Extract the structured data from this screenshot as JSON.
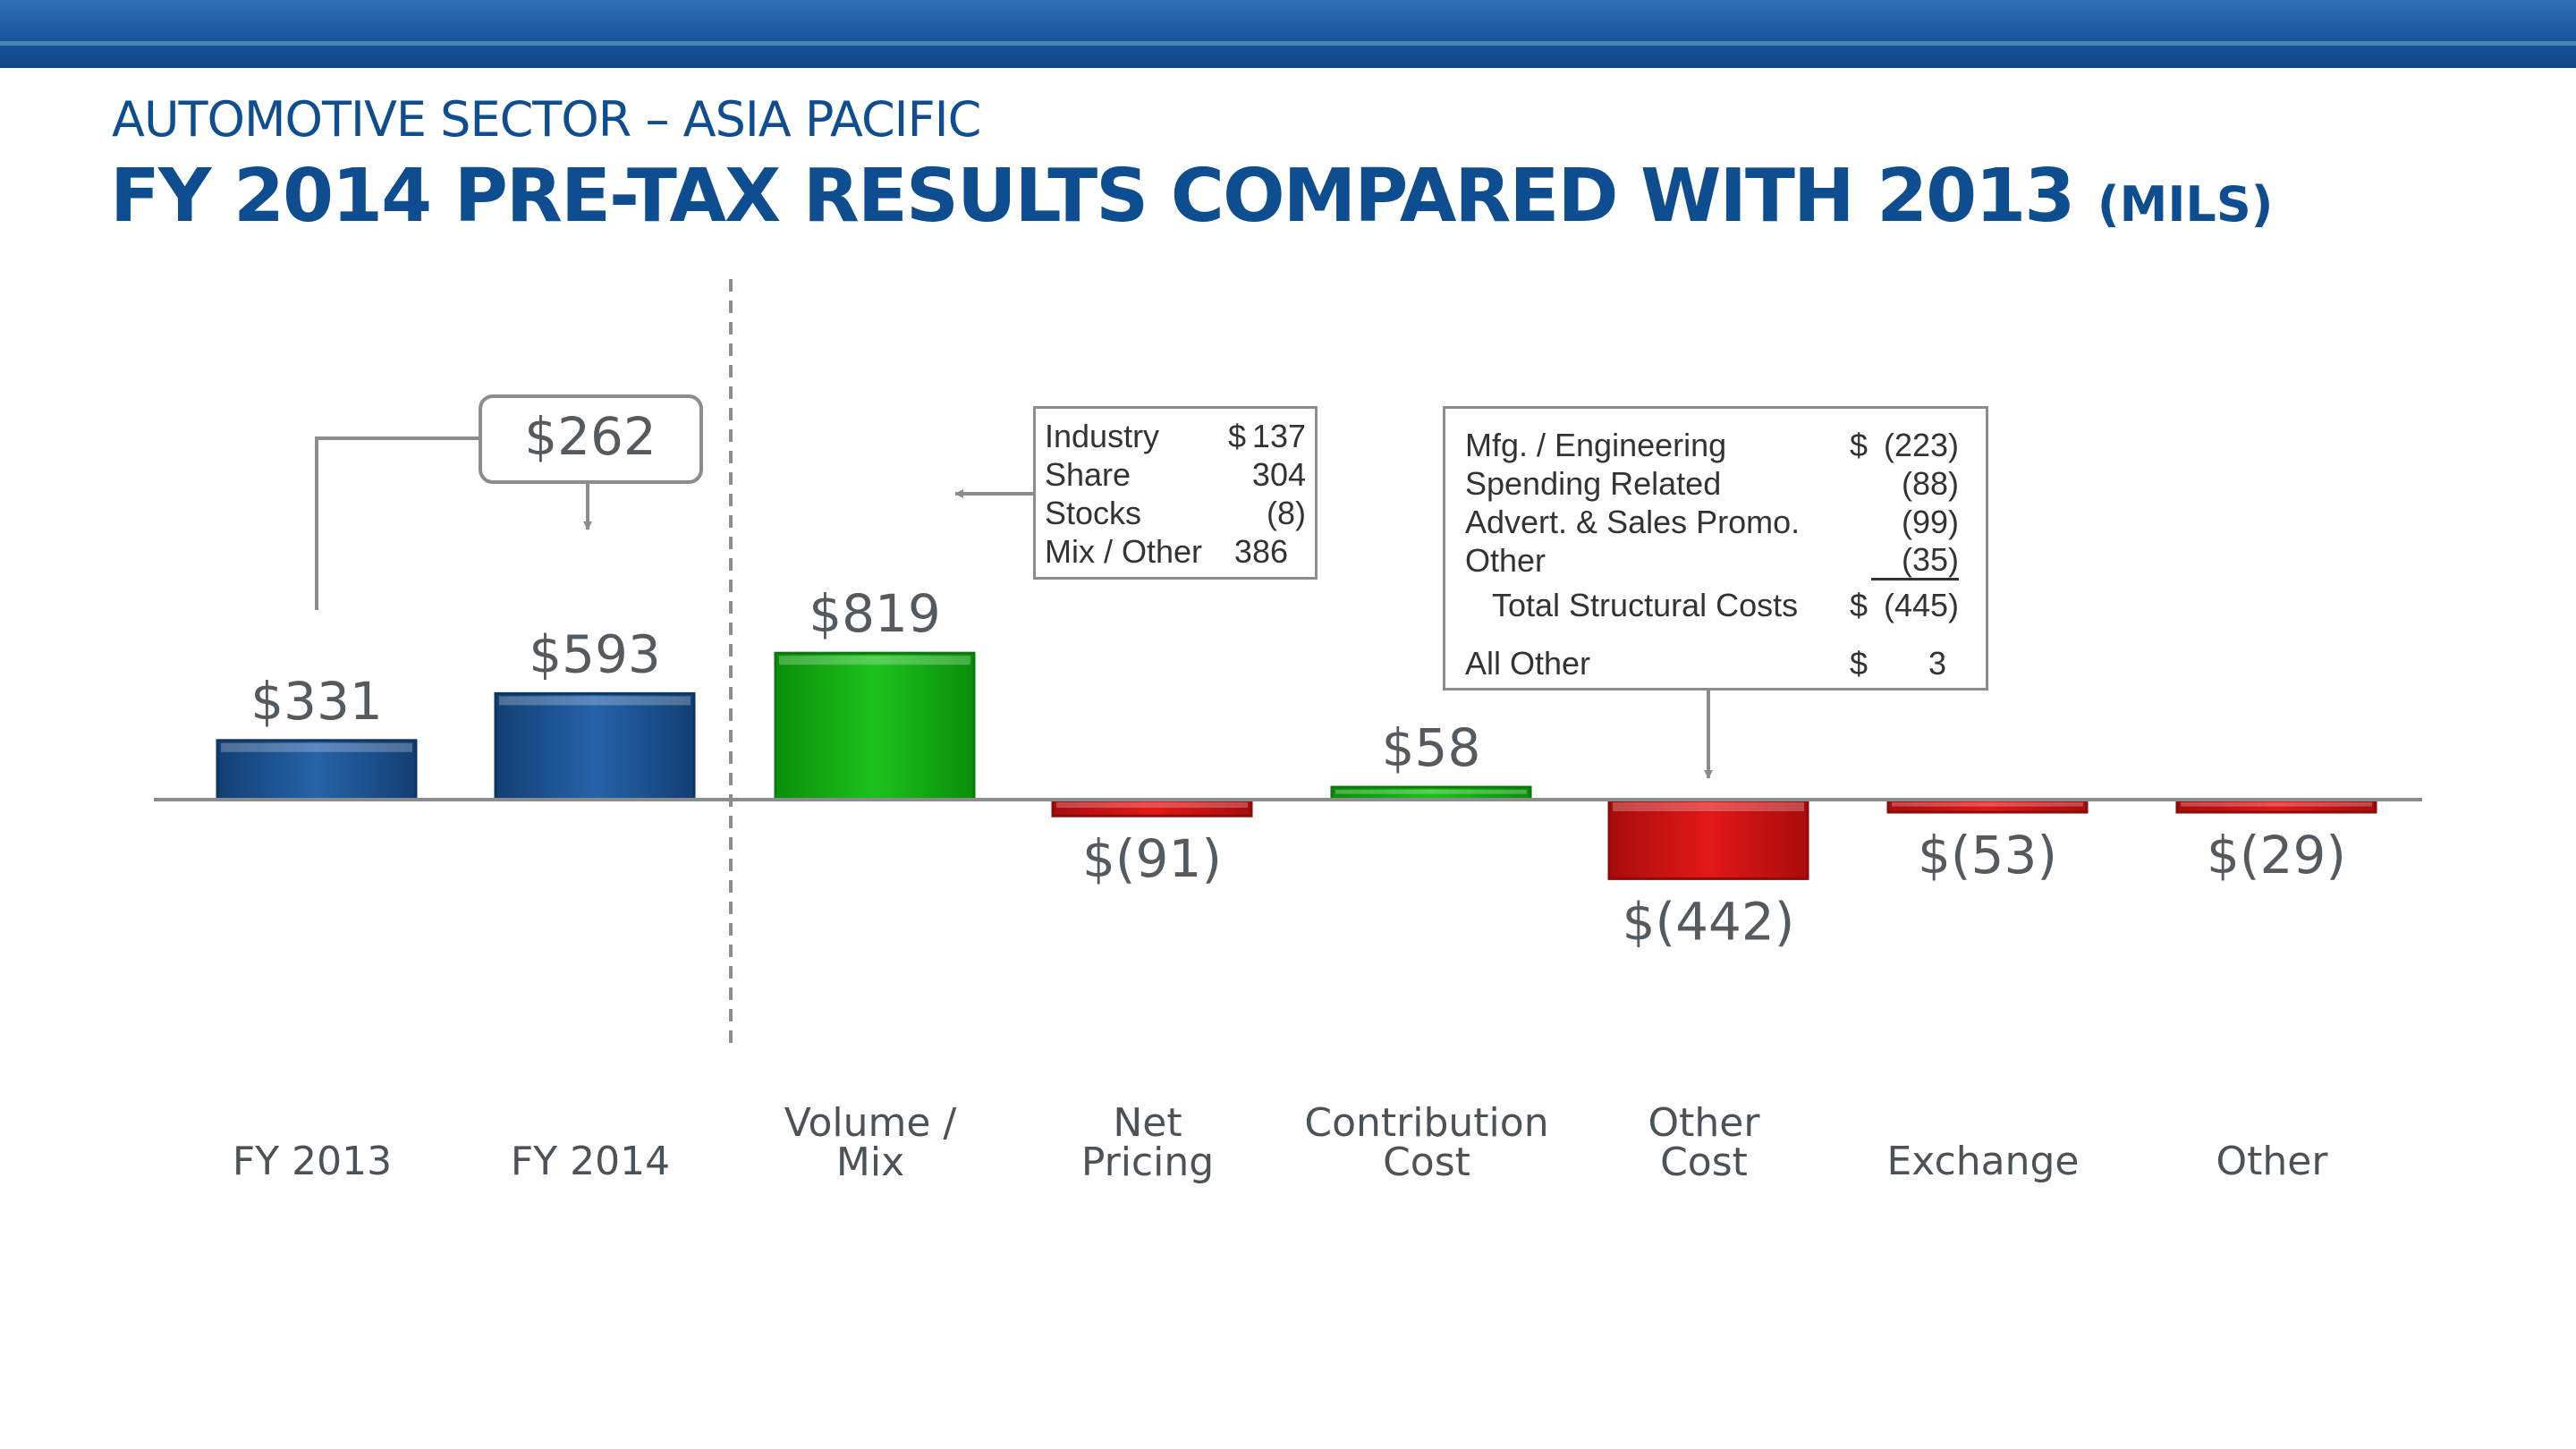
{
  "header": {
    "subtitle": "AUTOMOTIVE SECTOR – ASIA PACIFIC",
    "title": "FY 2014 PRE-TAX RESULTS COMPARED WITH 2013",
    "units": "(MILS)"
  },
  "colors": {
    "brand_blue": "#0e4d8f",
    "bar_blue": "#1f5a99",
    "bar_green": "#14b014",
    "bar_red": "#d01212",
    "axis": "#8c8c8c",
    "label_gray": "#555a5e"
  },
  "chart_data": {
    "type": "bar",
    "subtype": "waterfall",
    "categories": [
      "FY 2013",
      "FY 2014",
      "Volume / Mix",
      "Net Pricing",
      "Contribution Cost",
      "Other Cost",
      "Exchange",
      "Other"
    ],
    "category_lines": [
      [
        "FY 2013"
      ],
      [
        "FY 2014"
      ],
      [
        "Volume /",
        "Mix"
      ],
      [
        "Net",
        "Pricing"
      ],
      [
        "Contribution",
        "Cost"
      ],
      [
        "Other",
        "Cost"
      ],
      [
        "Exchange"
      ],
      [
        "Other"
      ]
    ],
    "values": [
      331,
      593,
      819,
      -91,
      58,
      -442,
      -53,
      -29
    ],
    "value_labels": [
      "$331",
      "$593",
      "$819",
      "$(91)",
      "$58",
      "$(442)",
      "$(53)",
      "$(29)"
    ],
    "bar_colors": [
      "blue",
      "blue",
      "green",
      "red",
      "green",
      "red",
      "red",
      "red"
    ],
    "callout_change": "$262",
    "grid": false,
    "legend": "none"
  },
  "volume_mix_breakdown": {
    "rows": [
      {
        "label": "Industry",
        "currency": "$",
        "value": "137"
      },
      {
        "label": "Share",
        "currency": "",
        "value": "304"
      },
      {
        "label": "Stocks",
        "currency": "",
        "value": "(8)"
      },
      {
        "label": "Mix / Other",
        "currency": "",
        "value": "386"
      }
    ]
  },
  "other_cost_breakdown": {
    "rows": [
      {
        "label": "Mfg. / Engineering",
        "currency": "$",
        "value": "(223)"
      },
      {
        "label": "Spending Related",
        "currency": "",
        "value": "(88)"
      },
      {
        "label": "Advert. & Sales Promo.",
        "currency": "",
        "value": "(99)"
      },
      {
        "label": "Other",
        "currency": "",
        "value": "(35)"
      }
    ],
    "total": {
      "label": "Total Structural Costs",
      "currency": "$",
      "value": "(445)"
    },
    "all_other": {
      "label": "All Other",
      "currency": "$",
      "value": "3"
    }
  }
}
